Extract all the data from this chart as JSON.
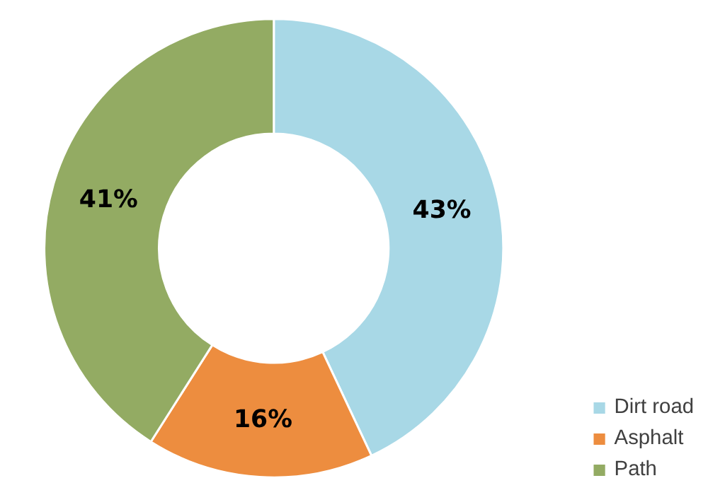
{
  "chart_data": {
    "type": "donut",
    "categories": [
      "Dirt road",
      "Asphalt",
      "Path"
    ],
    "values": [
      43,
      16,
      41
    ],
    "colors": [
      "#a8d8e6",
      "#ed8d3f",
      "#93ab63"
    ],
    "value_labels": [
      "43%",
      "16%",
      "41%"
    ],
    "legend": "bottom right"
  }
}
